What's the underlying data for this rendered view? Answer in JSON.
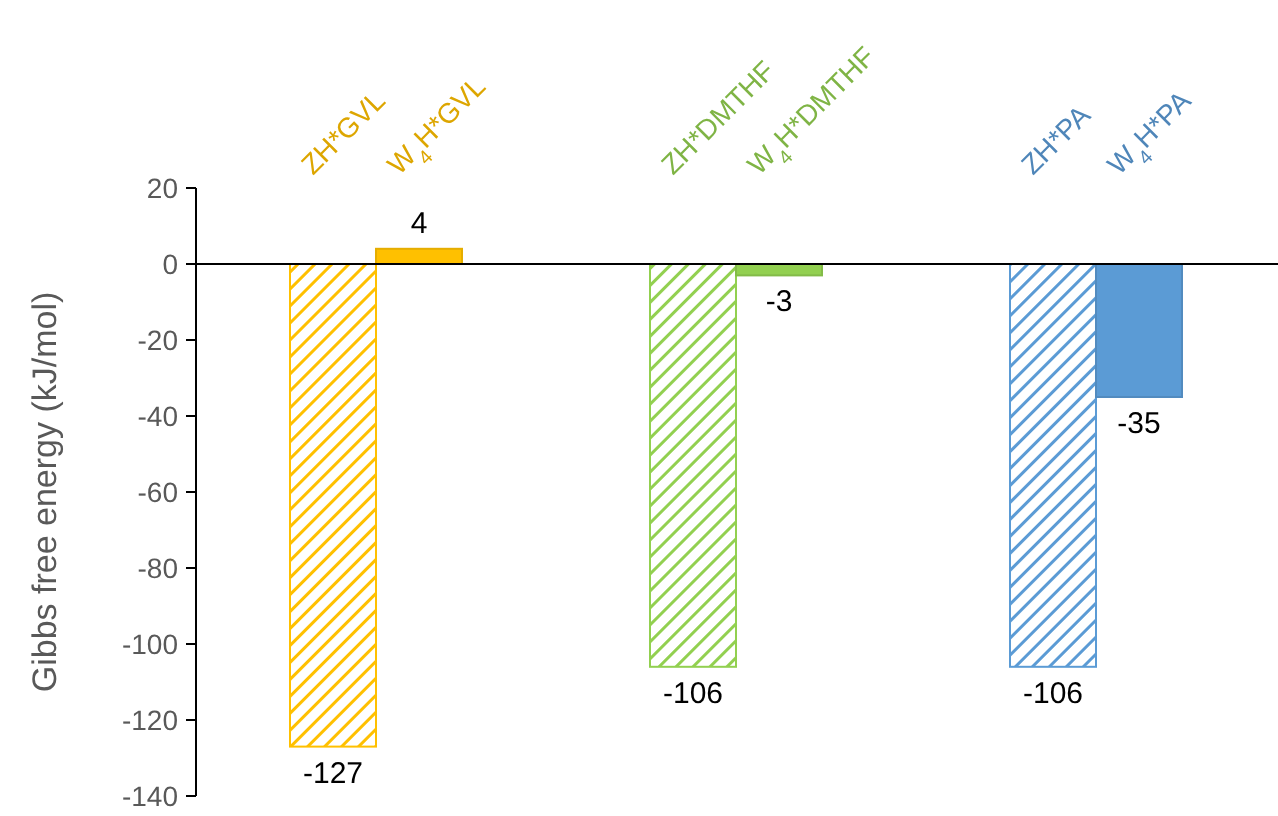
{
  "chart_data": {
    "type": "bar",
    "ylabel": "Gibbs free energy (kJ/mol)",
    "categories": [
      "ZH*GVL",
      "W$_{4}$H*GVL",
      "ZH*DMTHF",
      "W$_{4}$H*DMTHF",
      "ZH*PA",
      "W$_{4}$H*PA"
    ],
    "values": [
      -127,
      4,
      -106,
      -3,
      -106,
      -35
    ],
    "colors": [
      "#ffc000",
      "#ffc000",
      "#92d050",
      "#92d050",
      "#5b9bd5",
      "#5b9bd5"
    ],
    "ylim": [
      -140,
      20
    ],
    "yticks": [
      -140,
      -120,
      -100,
      -80,
      -60,
      -40,
      -20,
      0,
      20
    ],
    "data_labels": true
  }
}
